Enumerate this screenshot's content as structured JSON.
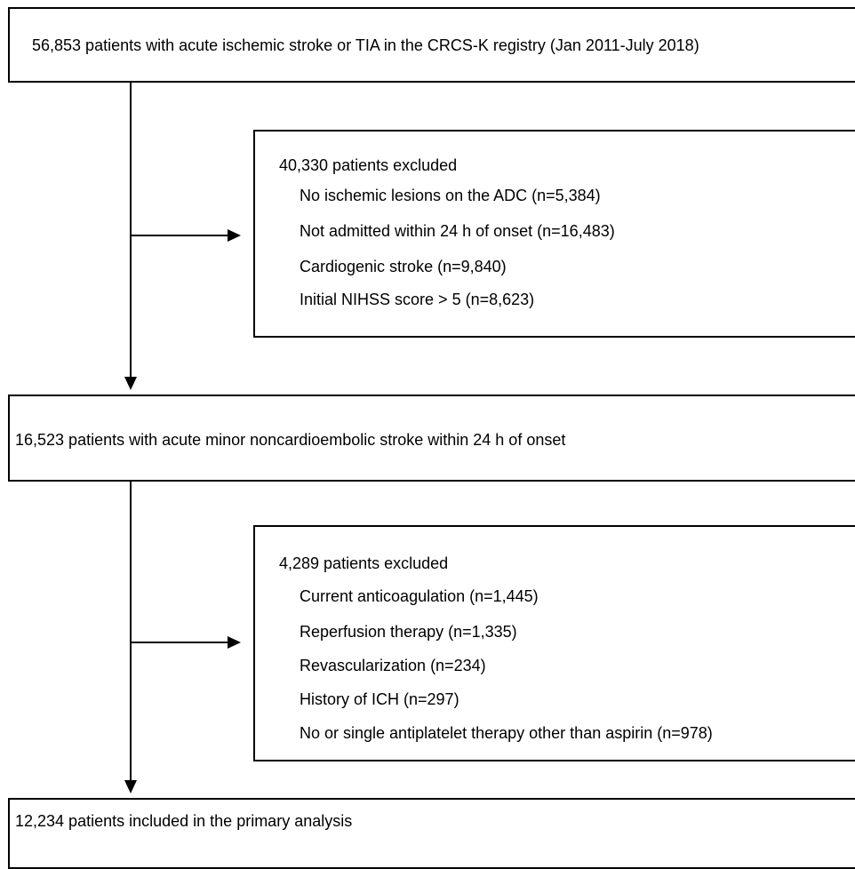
{
  "flowchart": {
    "top_box": {
      "text": "56,853 patients with acute ischemic stroke or TIA in the CRCS-K registry (Jan 2011-July 2018)"
    },
    "exclusion_1": {
      "header": "40,330 patients excluded",
      "items": [
        "No ischemic lesions on the ADC (n=5,384)",
        "Not admitted within 24 h of onset (n=16,483)",
        "Cardiogenic stroke (n=9,840)",
        "Initial NIHSS score > 5 (n=8,623)"
      ]
    },
    "middle_box": {
      "text": "16,523 patients with acute minor noncardioembolic stroke within 24 h of onset"
    },
    "exclusion_2": {
      "header": "4,289 patients excluded",
      "items": [
        "Current anticoagulation (n=1,445)",
        "Reperfusion therapy (n=1,335)",
        "Revascularization (n=234)",
        "History of ICH (n=297)",
        "No or single antiplatelet therapy other than aspirin (n=978)"
      ]
    },
    "bottom_box": {
      "text": "12,234 patients included in the primary analysis"
    }
  }
}
